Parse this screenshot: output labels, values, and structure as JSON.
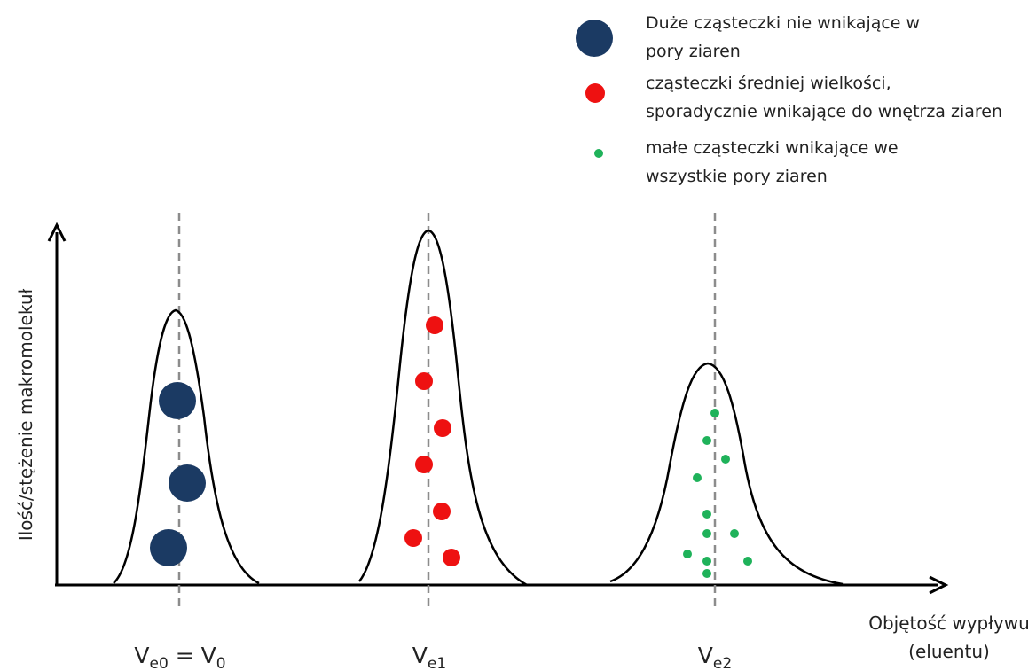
{
  "legend": {
    "items": [
      {
        "lines": [
          "Duże cząsteczki nie wnikające w",
          "pory ziaren"
        ],
        "color": "#1b3a63"
      },
      {
        "lines": [
          "cząsteczki  średniej wielkości,",
          "sporadycznie wnikające do wnętrza ziaren"
        ],
        "color": "#ee1111"
      },
      {
        "lines": [
          "małe cząsteczki wnikające we",
          "wszystkie pory ziaren"
        ],
        "color": "#1fb25a"
      }
    ]
  },
  "axes": {
    "y_label": "Ilość/stężenie makromolekuł",
    "x_label_lines": [
      "Objętość wypływu",
      "(eluentu)"
    ]
  },
  "peaks": [
    {
      "label_main": "V",
      "label_sub": "e0",
      "label_rest": " = V",
      "label_sub2": "0",
      "color": "#1b3a63"
    },
    {
      "label_main": "V",
      "label_sub": "e1",
      "label_rest": "",
      "label_sub2": "",
      "color": "#ee1111"
    },
    {
      "label_main": "V",
      "label_sub": "e2",
      "label_rest": "",
      "label_sub2": "",
      "color": "#1fb25a"
    }
  ]
}
